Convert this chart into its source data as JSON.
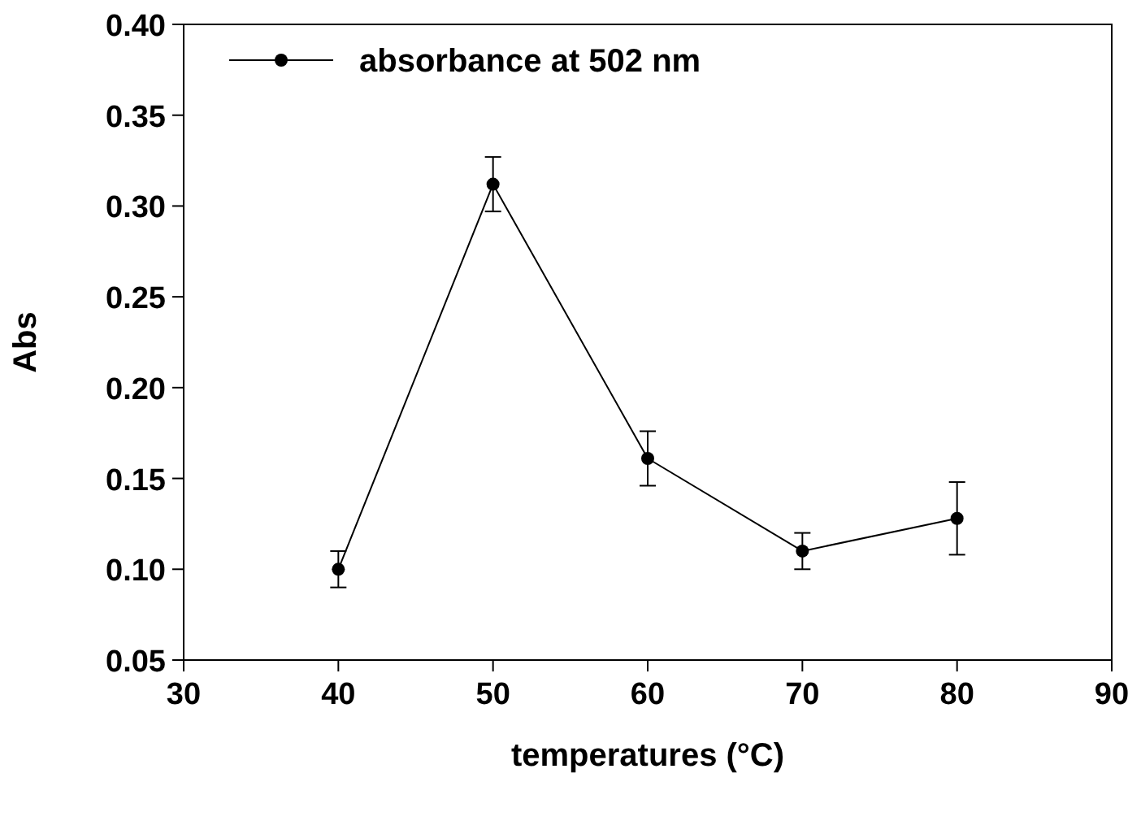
{
  "chart_data": {
    "type": "line",
    "xlabel": "temperatures (°C)",
    "ylabel": "Abs",
    "x": [
      40,
      50,
      60,
      70,
      80
    ],
    "series": [
      {
        "name": "absorbance at 502 nm",
        "color": "#000000",
        "values": [
          0.1,
          0.312,
          0.161,
          0.11,
          0.128
        ],
        "errors": [
          0.01,
          0.015,
          0.015,
          0.01,
          0.02
        ]
      }
    ],
    "xlim": [
      30,
      90
    ],
    "xticks": [
      30,
      40,
      50,
      60,
      70,
      80,
      90
    ],
    "ylim": [
      0.05,
      0.4
    ],
    "yticks": [
      {
        "value": 0.05,
        "label": "0.05"
      },
      {
        "value": 0.1,
        "label": "0.10"
      },
      {
        "value": 0.15,
        "label": "0.15"
      },
      {
        "value": 0.2,
        "label": "0.20"
      },
      {
        "value": 0.25,
        "label": "0.25"
      },
      {
        "value": 0.3,
        "label": "0.30"
      },
      {
        "value": 0.35,
        "label": "0.35"
      },
      {
        "value": 0.4,
        "label": "0.40"
      }
    ],
    "marker": "circle",
    "legend": "top left",
    "grid": false
  }
}
